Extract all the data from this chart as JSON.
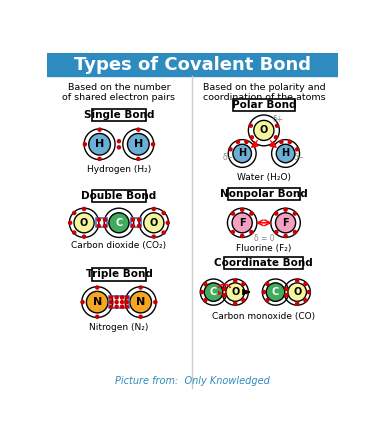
{
  "title": "Types of Covalent Bond",
  "title_bg": "#2e8bbf",
  "title_color": "white",
  "bg_color": "white",
  "left_header": "Based on the number\nof shared electron pairs",
  "right_header": "Based on the polarity and\ncoordination of the atoms",
  "footer": "Picture from:  Only Knowledged",
  "footer_color": "#2e8bbf",
  "colors": {
    "H": "#6baed6",
    "O_yellow": "#f5f5a0",
    "C_green": "#41ab5d",
    "N_orange": "#f5a623",
    "F_pink": "#f4a0c0",
    "red": "#cc0000",
    "bond_blue": "#4472c4",
    "divider": "#cccccc",
    "black": "black",
    "white": "white",
    "gray": "#888888"
  }
}
